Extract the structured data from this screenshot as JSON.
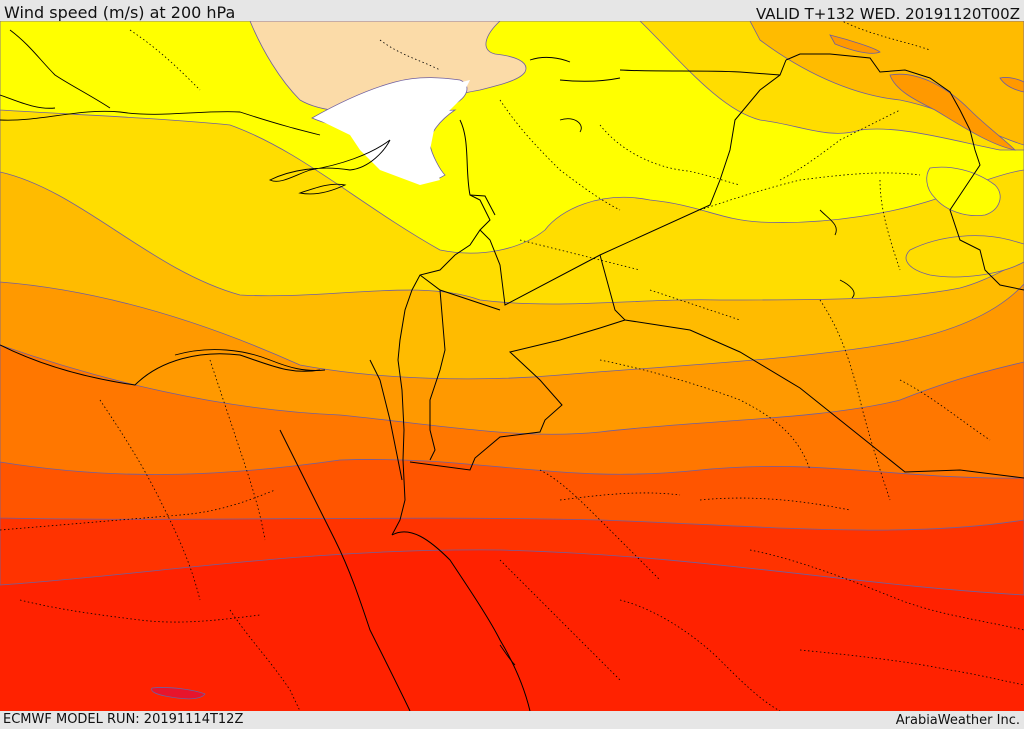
{
  "header": {
    "title": "Wind speed (m/s) at 200 hPa",
    "valid": "VALID T+132 WED. 20191120T00Z"
  },
  "footer": {
    "model_run": "ECMWF MODEL RUN: 20191114T12Z",
    "credit": "ArabiaWeather Inc."
  },
  "palette": {
    "band_1": "#fbdba8",
    "band_2": "#ffff00",
    "band_3": "#ffdd00",
    "band_4": "#ffbb00",
    "band_5": "#ff9900",
    "band_6": "#ff7700",
    "band_7": "#ff5500",
    "band_8": "#ff3300",
    "band_9": "#ff2200",
    "band_10": "#e8142c",
    "calm": "#ffffff",
    "boundary_line": "#000000",
    "contour_line": "#6f5fa0"
  }
}
